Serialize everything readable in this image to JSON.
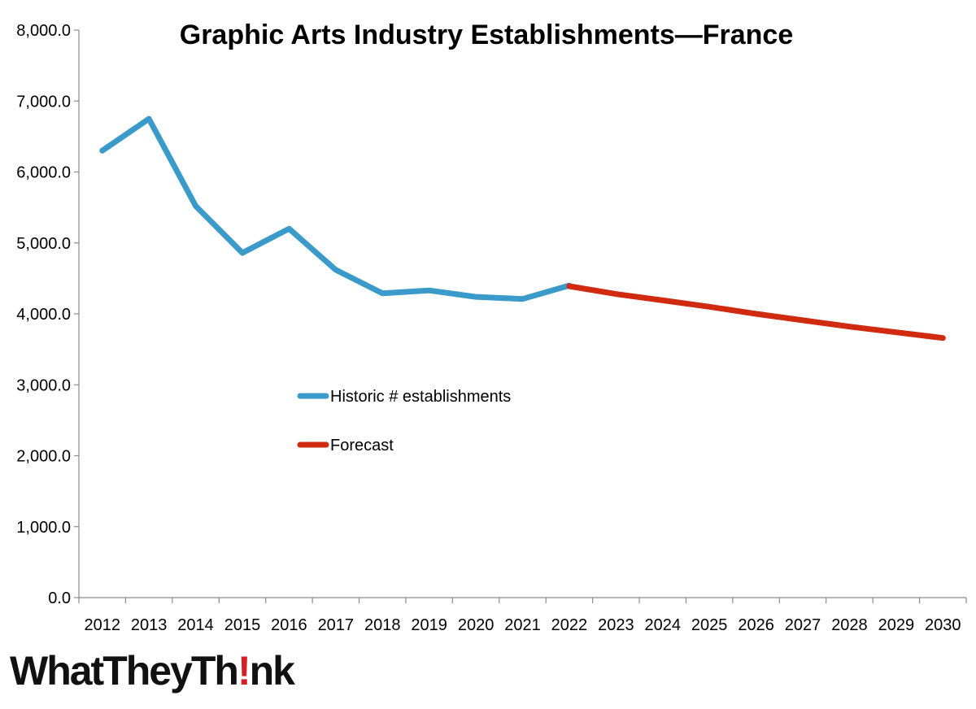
{
  "chart_data": {
    "type": "line",
    "title": "Graphic Arts Industry Establishments—France",
    "xlabel": "",
    "ylabel": "",
    "categories": [
      "2012",
      "2013",
      "2014",
      "2015",
      "2016",
      "2017",
      "2018",
      "2019",
      "2020",
      "2021",
      "2022",
      "2023",
      "2024",
      "2025",
      "2026",
      "2027",
      "2028",
      "2029",
      "2030"
    ],
    "ylim": [
      0,
      8000
    ],
    "yticks": [
      "0.0",
      "1,000.0",
      "2,000.0",
      "3,000.0",
      "4,000.0",
      "5,000.0",
      "6,000.0",
      "7,000.0",
      "8,000.0"
    ],
    "ytick_values": [
      0,
      1000,
      2000,
      3000,
      4000,
      5000,
      6000,
      7000,
      8000
    ],
    "grid": false,
    "legend_position": "center-left",
    "series": [
      {
        "name": "Historic # establishments",
        "color": "#3a9ac9",
        "values": [
          6300,
          6750,
          5520,
          4860,
          5200,
          4620,
          4290,
          4330,
          4240,
          4210,
          4400,
          null,
          null,
          null,
          null,
          null,
          null,
          null,
          null
        ]
      },
      {
        "name": "Forecast",
        "color": "#d02a10",
        "values": [
          null,
          null,
          null,
          null,
          null,
          null,
          null,
          null,
          null,
          null,
          4390,
          4280,
          4190,
          4100,
          4000,
          3910,
          3820,
          3740,
          3660
        ]
      }
    ]
  },
  "logo": {
    "part1": "WhatTheyTh",
    "bang": "!",
    "part2": "nk"
  }
}
